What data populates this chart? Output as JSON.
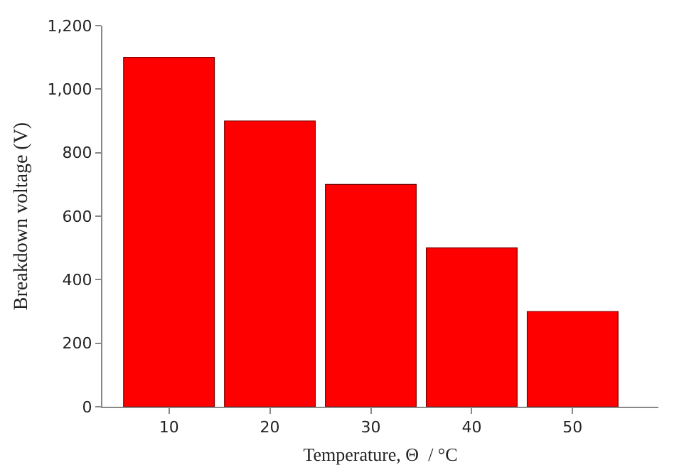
{
  "chart_data": {
    "type": "bar",
    "xlabel": "Temperature, Θ  / °C",
    "ylabel": "Breakdown voltage (V)",
    "categories": [
      "10",
      "20",
      "30",
      "40",
      "50"
    ],
    "values": [
      1100,
      900,
      700,
      500,
      300
    ],
    "color": "#ff0000",
    "ylim": [
      0,
      1200
    ],
    "yticks": [
      0,
      {
        "value": 200,
        "label": "200"
      },
      {
        "value": 400,
        "label": "400"
      },
      {
        "value": 600,
        "label": "600"
      },
      {
        "value": 800,
        "label": "800"
      },
      {
        "value": 1000,
        "label": "1,000"
      },
      {
        "value": 1200,
        "label": "1,200"
      }
    ],
    "grid": false
  }
}
